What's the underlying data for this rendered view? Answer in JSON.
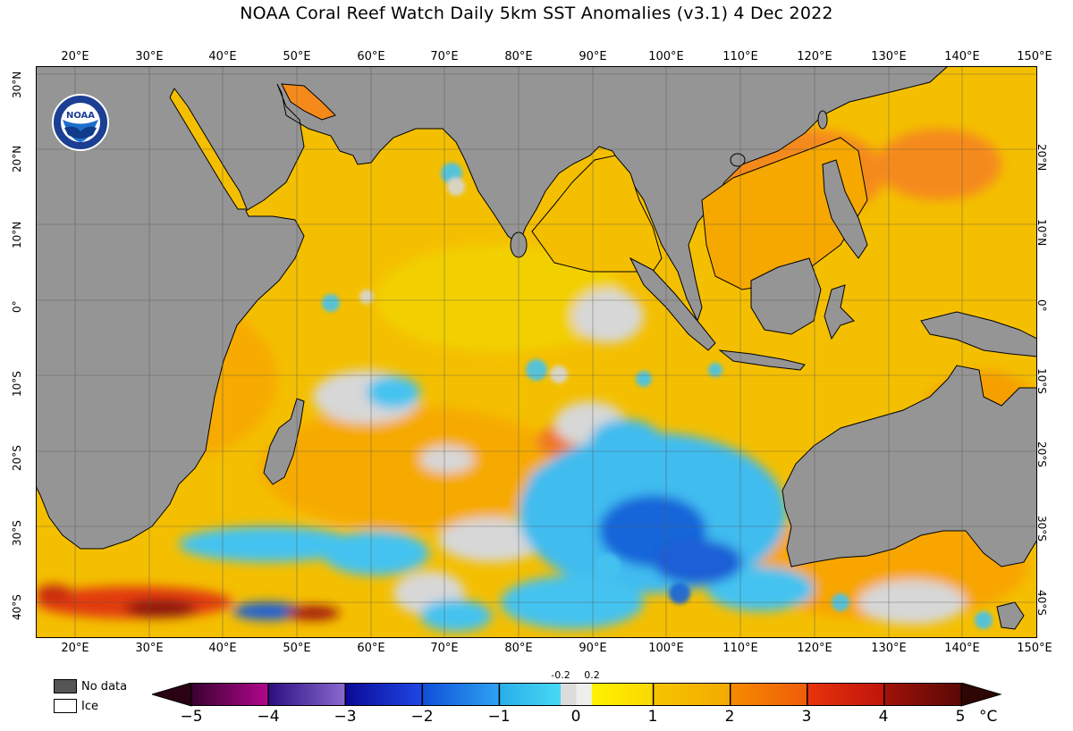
{
  "title": "NOAA Coral Reef Watch Daily 5km SST Anomalies  (v3.1)   4 Dec 2022",
  "logo_text": "NOAA",
  "lon_labels": [
    "20°E",
    "30°E",
    "40°E",
    "50°E",
    "60°E",
    "70°E",
    "80°E",
    "90°E",
    "100°E",
    "110°E",
    "120°E",
    "130°E",
    "140°E",
    "150°E"
  ],
  "lat_labels": [
    "30°N",
    "20°N",
    "10°N",
    "0°",
    "10°S",
    "20°S",
    "30°S",
    "40°S"
  ],
  "map": {
    "lon_range": [
      15,
      150
    ],
    "lat_range": [
      -44.5,
      31
    ],
    "colors": {
      "land": "#959595",
      "ocean_base": "#f3c200",
      "ocean_warm": "#f6a800",
      "orange": "#f58a1a",
      "no_change": "#d7d7d7",
      "light_blue": "#3fbcef",
      "blue": "#1665d9",
      "dark_red": "#a0160a",
      "red": "#e23a0e"
    }
  },
  "legend": {
    "no_data": "No data",
    "ice": "Ice",
    "no_data_color": "#555555",
    "ice_color": "#ffffff"
  },
  "colorbar": {
    "ticks": [
      "−5",
      "−4",
      "−3",
      "−2",
      "−1",
      "0",
      "1",
      "2",
      "3",
      "4",
      "5"
    ],
    "small_ticks": [
      "-0.2",
      "0.2"
    ],
    "unit": "°C",
    "range": [
      -5,
      5
    ],
    "low_arrow_color": "#2a0214",
    "high_arrow_color": "#2e0704",
    "segments": [
      {
        "from": -5,
        "to": -4,
        "c1": "#3a0230",
        "c2": "#b1068e"
      },
      {
        "from": -4,
        "to": -3,
        "c1": "#2c0f80",
        "c2": "#8a6ad0"
      },
      {
        "from": -3,
        "to": -2,
        "c1": "#0a0a96",
        "c2": "#1f47e6"
      },
      {
        "from": -2,
        "to": -1,
        "c1": "#0e4fd8",
        "c2": "#2ea3f2"
      },
      {
        "from": -1,
        "to": -0.2,
        "c1": "#28aee8",
        "c2": "#47d9f5"
      },
      {
        "from": -0.2,
        "to": 0,
        "c1": "#dcdcdc",
        "c2": "#dcdcdc"
      },
      {
        "from": 0,
        "to": 0.2,
        "c1": "#eeeeee",
        "c2": "#eeeeee"
      },
      {
        "from": 0.2,
        "to": 1,
        "c1": "#fff200",
        "c2": "#fad800"
      },
      {
        "from": 1,
        "to": 2,
        "c1": "#f6c500",
        "c2": "#f4a900"
      },
      {
        "from": 2,
        "to": 3,
        "c1": "#f68a00",
        "c2": "#f05c0a"
      },
      {
        "from": 3,
        "to": 4,
        "c1": "#e8330c",
        "c2": "#c0140c"
      },
      {
        "from": 4,
        "to": 5,
        "c1": "#a11208",
        "c2": "#5a0906"
      }
    ]
  }
}
